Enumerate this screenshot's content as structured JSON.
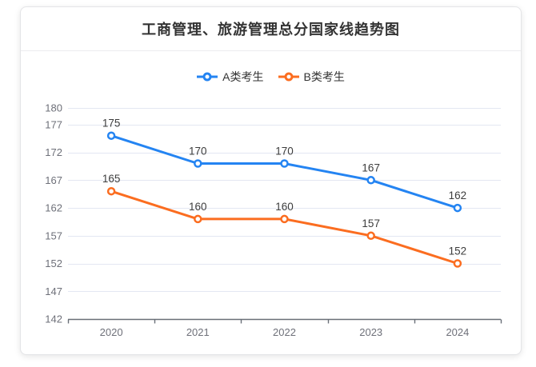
{
  "card": {
    "title": "工商管理、旅游管理总分国家线趋势图"
  },
  "chart_data": {
    "type": "line",
    "title": "工商管理、旅游管理总分国家线趋势图",
    "categories": [
      "2020",
      "2021",
      "2022",
      "2023",
      "2024"
    ],
    "series": [
      {
        "name": "A类考生",
        "color": "#2484f2",
        "values": [
          175,
          170,
          170,
          167,
          162
        ]
      },
      {
        "name": "B类考生",
        "color": "#fb6d20",
        "values": [
          165,
          160,
          160,
          157,
          152
        ]
      }
    ],
    "y_ticks": [
      142,
      147,
      152,
      157,
      162,
      167,
      172,
      177,
      180
    ],
    "ylim": [
      142,
      180
    ],
    "xlabel": "",
    "ylabel": "",
    "grid": true,
    "legend_position": "top",
    "marker": "hollow-circle",
    "data_labels": "above"
  },
  "colors": {
    "grid_line": "#e3e7f2",
    "axis_line": "#696f77",
    "axis_label": "#6e7079",
    "data_label": "#3d3d3d",
    "title_text": "#333333",
    "legend_text": "#333333"
  }
}
